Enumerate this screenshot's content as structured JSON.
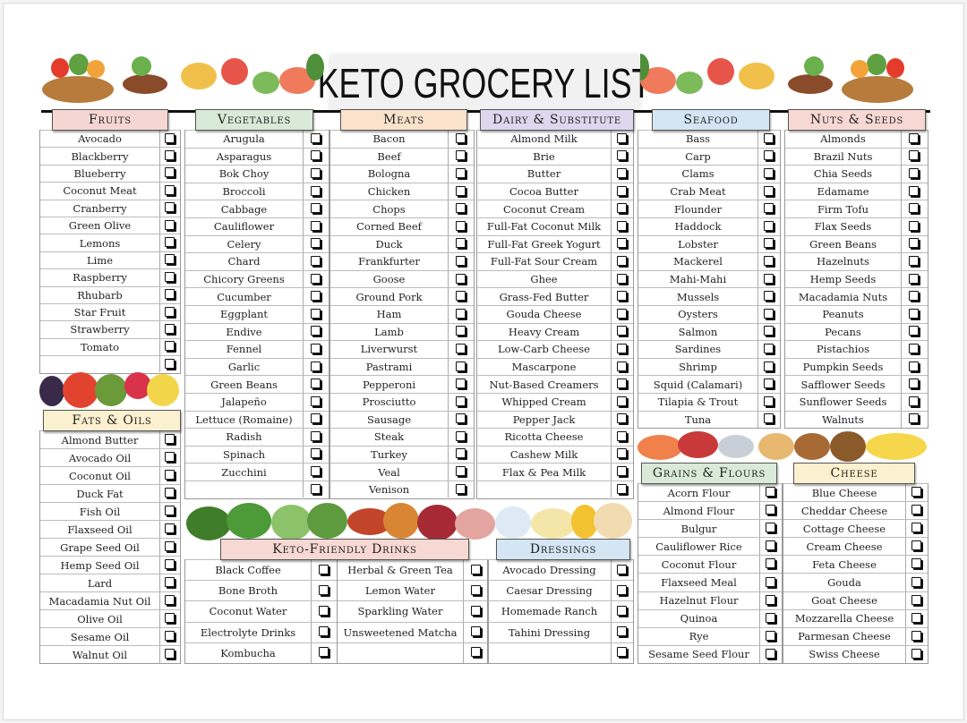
{
  "title": "KETO GROCERY LIST",
  "sections": [
    {
      "id": "fruits",
      "label": "Fruits",
      "color": "#f6d6d3",
      "items": [
        "Avocado",
        "Blackberry",
        "Blueberry",
        "Coconut Meat",
        "Cranberry",
        "Green Olive",
        "Lemons",
        "Lime",
        "Raspberry",
        "Rhubarb",
        "Star Fruit",
        "Strawberry",
        "Tomato"
      ]
    },
    {
      "id": "vegetables",
      "label": "Vegetables",
      "color": "#d9ebd8",
      "items": [
        "Arugula",
        "Asparagus",
        "Bok Choy",
        "Broccoli",
        "Cabbage",
        "Cauliflower",
        "Celery",
        "Chard",
        "Chicory Greens",
        "Cucumber",
        "Eggplant",
        "Endive",
        "Fennel",
        "Garlic",
        "Green Beans",
        "Jalapeño",
        "Lettuce (Romaine)",
        "Radish",
        "Spinach",
        "Zucchini"
      ]
    },
    {
      "id": "meats",
      "label": "Meats",
      "color": "#fbe2cb",
      "items": [
        "Bacon",
        "Beef",
        "Bologna",
        "Chicken",
        "Chops",
        "Corned Beef",
        "Duck",
        "Frankfurter",
        "Goose",
        "Ground Pork",
        "Ham",
        "Lamb",
        "Liverwurst",
        "Pastrami",
        "Pepperoni",
        "Prosciutto",
        "Sausage",
        "Steak",
        "Turkey",
        "Veal",
        "Venison"
      ]
    },
    {
      "id": "dairy",
      "label": "Dairy & Substitute",
      "color": "#ddd8ee",
      "items": [
        "Almond Milk",
        "Brie",
        "Butter",
        "Cocoa Butter",
        "Coconut Cream",
        "Full-Fat Coconut Milk",
        "Full-Fat Greek Yogurt",
        "Full-Fat Sour Cream",
        "Ghee",
        "Grass-Fed Butter",
        "Gouda Cheese",
        "Heavy Cream",
        "Low-Carb Cheese",
        "Mascarpone",
        "Nut-Based Creamers",
        "Whipped Cream",
        "Pepper Jack",
        "Ricotta Cheese",
        "Cashew Milk",
        "Flax & Pea Milk"
      ]
    },
    {
      "id": "seafood",
      "label": "Seafood",
      "color": "#d4e6f3",
      "items": [
        "Bass",
        "Carp",
        "Clams",
        "Crab Meat",
        "Flounder",
        "Haddock",
        "Lobster",
        "Mackerel",
        "Mahi-Mahi",
        "Mussels",
        "Oysters",
        "Salmon",
        "Sardines",
        "Shrimp",
        "Squid (Calamari)",
        "Tilapia & Trout",
        "Tuna"
      ]
    },
    {
      "id": "nuts",
      "label": "Nuts & Seeds",
      "color": "#f8d8d3",
      "items": [
        "Almonds",
        "Brazil Nuts",
        "Chia Seeds",
        "Edamame",
        "Firm Tofu",
        "Flax Seeds",
        "Green Beans",
        "Hazelnuts",
        "Hemp Seeds",
        "Macadamia Nuts",
        "Peanuts",
        "Pecans",
        "Pistachios",
        "Pumpkin Seeds",
        "Safflower Seeds",
        "Sunflower Seeds",
        "Walnuts"
      ]
    },
    {
      "id": "fats",
      "label": "Fats & Oils",
      "color": "#fbf0cf",
      "items": [
        "Almond Butter",
        "Avocado Oil",
        "Coconut Oil",
        "Duck Fat",
        "Fish Oil",
        "Flaxseed Oil",
        "Grape Seed Oil",
        "Hemp Seed Oil",
        "Lard",
        "Macadamia Nut Oil",
        "Olive Oil",
        "Sesame Oil",
        "Walnut Oil"
      ]
    },
    {
      "id": "drinks",
      "label": "Keto-Friendly Drinks",
      "color": "#f8d8d3",
      "items": [
        "Black Coffee",
        "Bone Broth",
        "Coconut Water",
        "Electrolyte Drinks",
        "Kombucha",
        "Herbal & Green Tea",
        "Lemon Water",
        "Sparkling Water",
        "Unsweetened Matcha"
      ]
    },
    {
      "id": "dressings",
      "label": "Dressings",
      "color": "#d4e6f3",
      "items": [
        "Avocado Dressing",
        "Caesar Dressing",
        "Homemade Ranch",
        "Tahini Dressing"
      ]
    },
    {
      "id": "grains",
      "label": "Grains & Flours",
      "color": "#d9ebd8",
      "items": [
        "Acorn Flour",
        "Almond Flour",
        "Bulgur",
        "Cauliflower Rice",
        "Coconut Flour",
        "Flaxseed Meal",
        "Hazelnut Flour",
        "Quinoa",
        "Rye",
        "Sesame Seed Flour"
      ]
    },
    {
      "id": "cheese",
      "label": "Cheese",
      "color": "#fbf0cf",
      "items": [
        "Blue Cheese",
        "Cheddar Cheese",
        "Cottage Cheese",
        "Cream Cheese",
        "Feta Cheese",
        "Gouda",
        "Goat Cheese",
        "Mozzarella Cheese",
        "Parmesan Cheese",
        "Swiss Cheese"
      ]
    }
  ]
}
